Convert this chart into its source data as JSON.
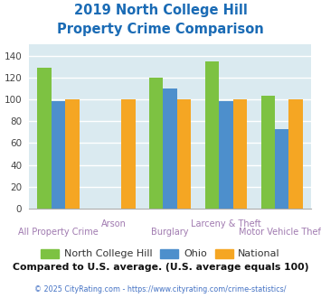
{
  "title": "2019 North College Hill\nProperty Crime Comparison",
  "title_color": "#1a6bb5",
  "categories": [
    "All Property Crime",
    "Arson",
    "Burglary",
    "Larceny & Theft",
    "Motor Vehicle Theft"
  ],
  "nch_values": [
    129,
    0,
    120,
    135,
    103
  ],
  "ohio_values": [
    98,
    0,
    110,
    98,
    73
  ],
  "national_values": [
    100,
    100,
    100,
    100,
    100
  ],
  "color_nch": "#7dc242",
  "color_ohio": "#4d8fcc",
  "color_national": "#f5a623",
  "ylim": [
    0,
    150
  ],
  "yticks": [
    0,
    20,
    40,
    60,
    80,
    100,
    120,
    140
  ],
  "background_color": "#daeaf0",
  "grid_color": "#ffffff",
  "xlabel_color": "#a07ab0",
  "xlabel_fontsize": 7.0,
  "footnote": "Compared to U.S. average. (U.S. average equals 100)",
  "footnote_color": "#111111",
  "copyright": "© 2025 CityRating.com - https://www.cityrating.com/crime-statistics/",
  "copyright_color": "#4472c4",
  "bar_width": 0.18,
  "legend_labels": [
    "North College Hill",
    "Ohio",
    "National"
  ],
  "xlabels_top": [
    "",
    "Arson",
    "",
    "Larceny & Theft",
    ""
  ],
  "xlabels_bottom": [
    "All Property Crime",
    "",
    "Burglary",
    "",
    "Motor Vehicle Theft"
  ]
}
